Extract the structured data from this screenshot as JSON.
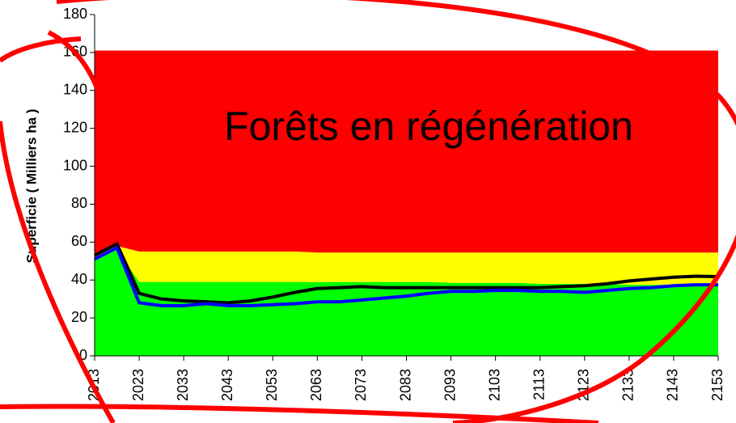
{
  "chart_data": {
    "type": "area",
    "y_label": "Superficie ( Milliers ha )",
    "annotation": "Forêts en régénération",
    "x": [
      2013,
      2018,
      2023,
      2028,
      2033,
      2038,
      2043,
      2048,
      2053,
      2058,
      2063,
      2068,
      2073,
      2078,
      2083,
      2088,
      2093,
      2098,
      2103,
      2108,
      2113,
      2118,
      2123,
      2128,
      2133,
      2138,
      2143,
      2148,
      2153
    ],
    "xlim": [
      2013,
      2153
    ],
    "xticks": [
      2013,
      2023,
      2033,
      2043,
      2053,
      2063,
      2073,
      2083,
      2093,
      2103,
      2113,
      2123,
      2133,
      2143,
      2153
    ],
    "ylim": [
      0,
      180
    ],
    "yticks": [
      0,
      20,
      40,
      60,
      80,
      100,
      120,
      140,
      160,
      180
    ],
    "series": [
      {
        "kind": "area",
        "color": "#00ff00",
        "values": [
          50,
          56,
          39,
          39,
          39,
          39,
          39,
          39,
          39,
          39,
          39,
          39,
          39,
          39,
          39,
          39,
          38.5,
          38.5,
          38.5,
          38.5,
          38,
          38,
          38,
          38,
          37.5,
          37.5,
          37.5,
          37,
          37
        ]
      },
      {
        "kind": "area",
        "color": "#ffff00",
        "values": [
          4,
          2,
          16,
          16,
          16,
          16,
          16,
          16,
          16,
          16,
          15.5,
          15.5,
          15.5,
          15.5,
          15.5,
          15.5,
          16,
          16,
          16,
          16,
          16.5,
          16.5,
          16.5,
          16.5,
          17,
          17,
          17,
          17.5,
          17.5
        ]
      },
      {
        "kind": "area",
        "color": "#ff0000",
        "values": [
          107,
          103,
          106,
          106,
          106,
          106,
          106,
          106,
          106,
          106,
          106.5,
          106.5,
          106.5,
          106.5,
          106.5,
          106.5,
          106.5,
          106.5,
          106.5,
          106.5,
          106.5,
          106.5,
          106.5,
          106.5,
          106.5,
          106.5,
          106.5,
          106.5,
          106.5
        ]
      },
      {
        "kind": "line",
        "color": "#000000",
        "values": [
          53,
          59,
          33,
          30,
          29,
          28.5,
          28,
          29,
          31,
          33.5,
          35.5,
          36,
          36.5,
          36,
          36,
          36,
          36,
          36,
          36,
          36,
          36,
          36.5,
          37,
          38,
          39.5,
          40.5,
          41.5,
          42,
          41.8
        ]
      },
      {
        "kind": "line",
        "color": "#0000ff",
        "values": [
          51,
          57,
          28,
          26.5,
          26.5,
          27.5,
          26.5,
          26.5,
          27,
          27.5,
          28.5,
          28.5,
          29.5,
          30.5,
          31.5,
          33,
          34,
          34,
          34.5,
          34.5,
          34,
          34,
          33.5,
          34.5,
          35.5,
          36,
          37,
          37.5,
          37.5
        ]
      }
    ]
  }
}
